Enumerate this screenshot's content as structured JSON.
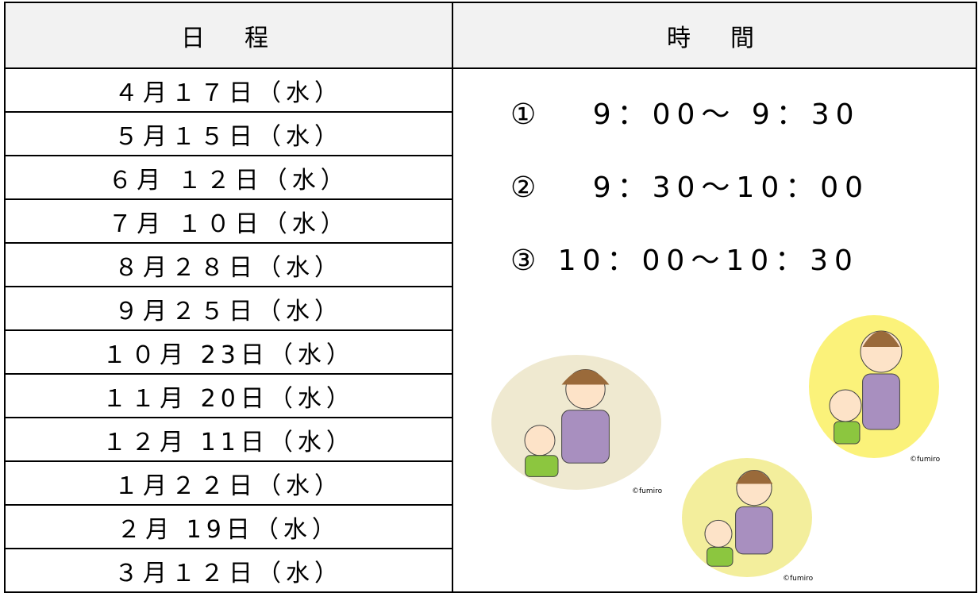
{
  "table": {
    "headers": [
      "日　程",
      "時　間"
    ],
    "dates": [
      "４月１７日（水）",
      "５月１５日（水）",
      "６月 １２日（水）",
      "７月 １０日（水）",
      "８月２８日（水）",
      "９月２５日（水）",
      "１０月 23日（水）",
      "１１月 20日（水）",
      "１２月 11日（水）",
      "１月２２日（水）",
      "２月 19日（水）",
      "３月１２日（水）"
    ],
    "times": [
      "①　 9：00～ 9：30",
      "②　 9：30～10：00",
      "③ 10：00～10：30"
    ],
    "credit": "©fumiro"
  }
}
